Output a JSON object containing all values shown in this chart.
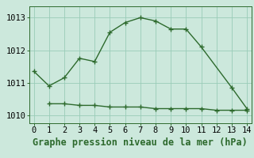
{
  "line1_x": [
    0,
    1,
    2,
    3,
    4,
    5,
    6,
    7,
    8,
    9,
    10,
    11,
    13,
    14
  ],
  "line1_y": [
    1011.35,
    1010.9,
    1011.15,
    1011.75,
    1011.65,
    1012.55,
    1012.85,
    1013.0,
    1012.9,
    1012.65,
    1012.65,
    1012.1,
    1010.85,
    1010.2
  ],
  "line2_x": [
    1,
    2,
    3,
    4,
    5,
    6,
    7,
    8,
    9,
    10,
    11,
    12,
    13,
    14
  ],
  "line2_y": [
    1010.35,
    1010.35,
    1010.3,
    1010.3,
    1010.25,
    1010.25,
    1010.25,
    1010.2,
    1010.2,
    1010.2,
    1010.2,
    1010.15,
    1010.15,
    1010.15
  ],
  "line_color": "#2d6a2d",
  "background_color": "#cce8dc",
  "grid_color": "#99ccb8",
  "xlabel": "Graphe pression niveau de la mer (hPa)",
  "xlim": [
    -0.3,
    14.3
  ],
  "ylim": [
    1009.75,
    1013.35
  ],
  "yticks": [
    1010,
    1011,
    1012,
    1013
  ],
  "xticks": [
    0,
    1,
    2,
    3,
    4,
    5,
    6,
    7,
    8,
    9,
    10,
    11,
    12,
    13,
    14
  ],
  "tick_fontsize": 7.5,
  "label_fontsize": 8.5
}
